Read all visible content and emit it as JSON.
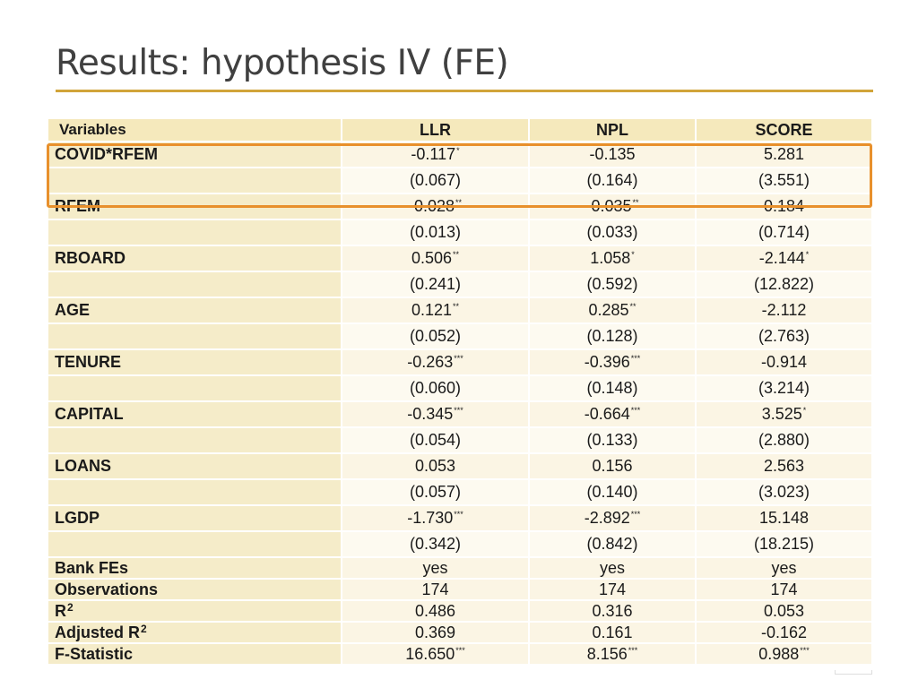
{
  "slide": {
    "title": "Results: hypothesis IV (FE)"
  },
  "table": {
    "header": [
      "Variables",
      "LLR",
      "NPL",
      "SCORE"
    ],
    "rows": [
      {
        "type": "coef",
        "label": "COVID*RFEM",
        "cells": [
          {
            "v": "-0.117",
            "s": "*"
          },
          {
            "v": "-0.135",
            "s": ""
          },
          {
            "v": "5.281",
            "s": ""
          }
        ]
      },
      {
        "type": "se",
        "label": "",
        "cells": [
          {
            "v": "(0.067)",
            "s": ""
          },
          {
            "v": "(0.164)",
            "s": ""
          },
          {
            "v": "(3.551)",
            "s": ""
          }
        ]
      },
      {
        "type": "coef",
        "label": "RFEM",
        "cells": [
          {
            "v": "-0.028",
            "s": "**"
          },
          {
            "v": "-0.035",
            "s": "**"
          },
          {
            "v": "0.184",
            "s": ""
          }
        ]
      },
      {
        "type": "se",
        "label": "",
        "cells": [
          {
            "v": "(0.013)",
            "s": ""
          },
          {
            "v": "(0.033)",
            "s": ""
          },
          {
            "v": "(0.714)",
            "s": ""
          }
        ]
      },
      {
        "type": "coef",
        "label": "RBOARD",
        "cells": [
          {
            "v": "0.506",
            "s": "**"
          },
          {
            "v": "1.058",
            "s": "*"
          },
          {
            "v": "-2.144",
            "s": "*"
          }
        ]
      },
      {
        "type": "se",
        "label": "",
        "cells": [
          {
            "v": "(0.241)",
            "s": ""
          },
          {
            "v": "(0.592)",
            "s": ""
          },
          {
            "v": "(12.822)",
            "s": ""
          }
        ]
      },
      {
        "type": "coef",
        "label": "AGE",
        "cells": [
          {
            "v": "0.121",
            "s": "**"
          },
          {
            "v": "0.285",
            "s": "**"
          },
          {
            "v": "-2.112",
            "s": ""
          }
        ]
      },
      {
        "type": "se",
        "label": "",
        "cells": [
          {
            "v": "(0.052)",
            "s": ""
          },
          {
            "v": "(0.128)",
            "s": ""
          },
          {
            "v": "(2.763)",
            "s": ""
          }
        ]
      },
      {
        "type": "coef",
        "label": "TENURE",
        "cells": [
          {
            "v": "-0.263",
            "s": "***"
          },
          {
            "v": "-0.396",
            "s": "***"
          },
          {
            "v": "-0.914",
            "s": ""
          }
        ]
      },
      {
        "type": "se",
        "label": "",
        "cells": [
          {
            "v": "(0.060)",
            "s": ""
          },
          {
            "v": "(0.148)",
            "s": ""
          },
          {
            "v": "(3.214)",
            "s": ""
          }
        ]
      },
      {
        "type": "coef",
        "label": "CAPITAL",
        "cells": [
          {
            "v": "-0.345",
            "s": "***"
          },
          {
            "v": "-0.664",
            "s": "***"
          },
          {
            "v": "3.525",
            "s": "*"
          }
        ]
      },
      {
        "type": "se",
        "label": "",
        "cells": [
          {
            "v": "(0.054)",
            "s": ""
          },
          {
            "v": "(0.133)",
            "s": ""
          },
          {
            "v": "(2.880)",
            "s": ""
          }
        ]
      },
      {
        "type": "coef",
        "label": "LOANS",
        "cells": [
          {
            "v": "0.053",
            "s": ""
          },
          {
            "v": "0.156",
            "s": ""
          },
          {
            "v": "2.563",
            "s": ""
          }
        ]
      },
      {
        "type": "se",
        "label": "",
        "cells": [
          {
            "v": "(0.057)",
            "s": ""
          },
          {
            "v": "(0.140)",
            "s": ""
          },
          {
            "v": "(3.023)",
            "s": ""
          }
        ]
      },
      {
        "type": "coef",
        "label": "LGDP",
        "cells": [
          {
            "v": "-1.730",
            "s": "***"
          },
          {
            "v": "-2.892",
            "s": "***"
          },
          {
            "v": "15.148",
            "s": ""
          }
        ]
      },
      {
        "type": "se",
        "label": "",
        "cells": [
          {
            "v": "(0.342)",
            "s": ""
          },
          {
            "v": "(0.842)",
            "s": ""
          },
          {
            "v": "(18.215)",
            "s": ""
          }
        ]
      },
      {
        "type": "stat",
        "label": "Bank FEs",
        "cells": [
          {
            "v": "yes",
            "s": ""
          },
          {
            "v": "yes",
            "s": ""
          },
          {
            "v": "yes",
            "s": ""
          }
        ]
      },
      {
        "type": "stat",
        "label": "Observations",
        "cells": [
          {
            "v": "174",
            "s": ""
          },
          {
            "v": "174",
            "s": ""
          },
          {
            "v": "174",
            "s": ""
          }
        ]
      },
      {
        "type": "stat",
        "label": "R",
        "sup": "2",
        "cells": [
          {
            "v": "0.486",
            "s": ""
          },
          {
            "v": "0.316",
            "s": ""
          },
          {
            "v": "0.053",
            "s": ""
          }
        ]
      },
      {
        "type": "stat",
        "label": "Adjusted R",
        "sup": "2",
        "cells": [
          {
            "v": "0.369",
            "s": ""
          },
          {
            "v": "0.161",
            "s": ""
          },
          {
            "v": "-0.162",
            "s": ""
          }
        ]
      },
      {
        "type": "stat",
        "label": "F-Statistic",
        "cells": [
          {
            "v": "16.650",
            "s": "***"
          },
          {
            "v": "8.156",
            "s": "***"
          },
          {
            "v": "0.988",
            "s": "***"
          }
        ]
      }
    ]
  },
  "colors": {
    "title_rule": "#d1a43a",
    "header_fill": "#f5e9bc",
    "highlight_border": "#e8902c"
  }
}
